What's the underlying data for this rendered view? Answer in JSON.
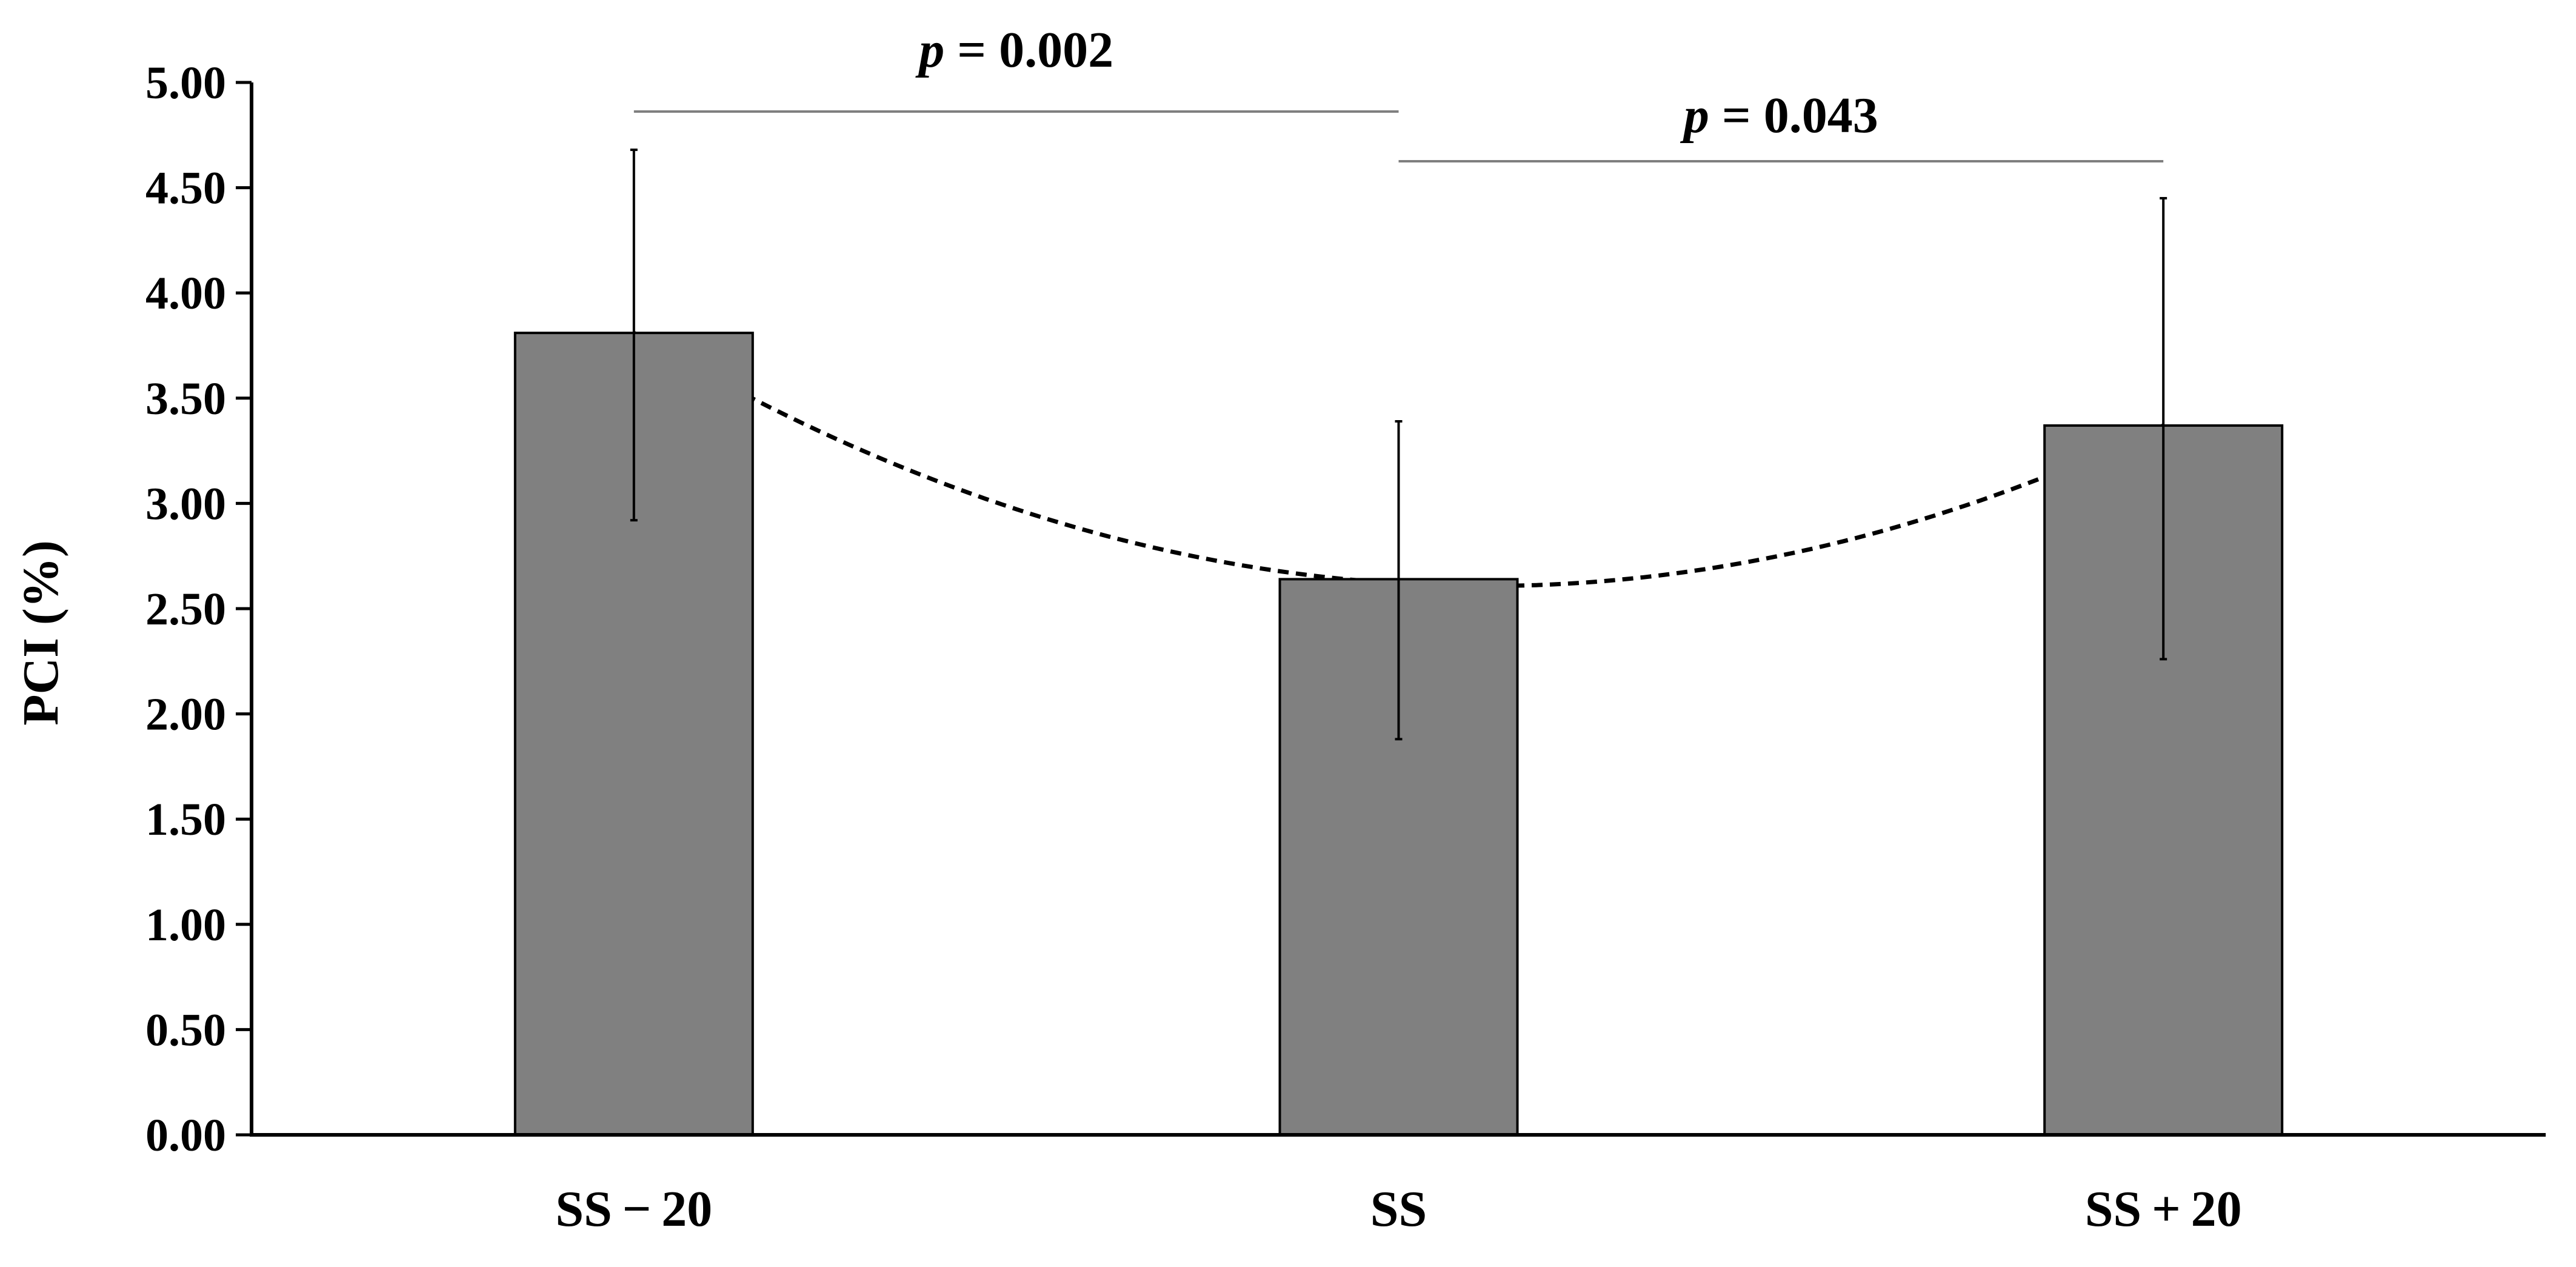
{
  "chart_data": {
    "type": "bar",
    "categories": [
      "SS − 20",
      "SS",
      "SS + 20"
    ],
    "values": [
      3.81,
      2.64,
      3.37
    ],
    "error_upper": [
      4.68,
      3.39,
      4.45
    ],
    "error_lower": [
      2.92,
      1.88,
      2.26
    ],
    "ylabel": "PCI (%)",
    "xlabel": "",
    "title": "",
    "ylim": [
      0,
      5
    ],
    "yticks": [
      "0.00",
      "0.50",
      "1.00",
      "1.50",
      "2.00",
      "2.50",
      "3.00",
      "3.50",
      "4.00",
      "4.50",
      "5.00"
    ],
    "grid": false,
    "trendline": {
      "style": "dashed",
      "type": "polynomial-2",
      "through": [
        3.81,
        2.62,
        3.37
      ]
    },
    "significance": [
      {
        "from": 0,
        "to": 1,
        "p_symbol": "p",
        "text": " = 0.002"
      },
      {
        "from": 1,
        "to": 2,
        "p_symbol": "p",
        "text": " = 0.043"
      }
    ],
    "colors": {
      "bar_fill": "#808080",
      "bar_stroke": "#000000",
      "bracket": "#7f7f7f",
      "axis": "#000000"
    }
  }
}
